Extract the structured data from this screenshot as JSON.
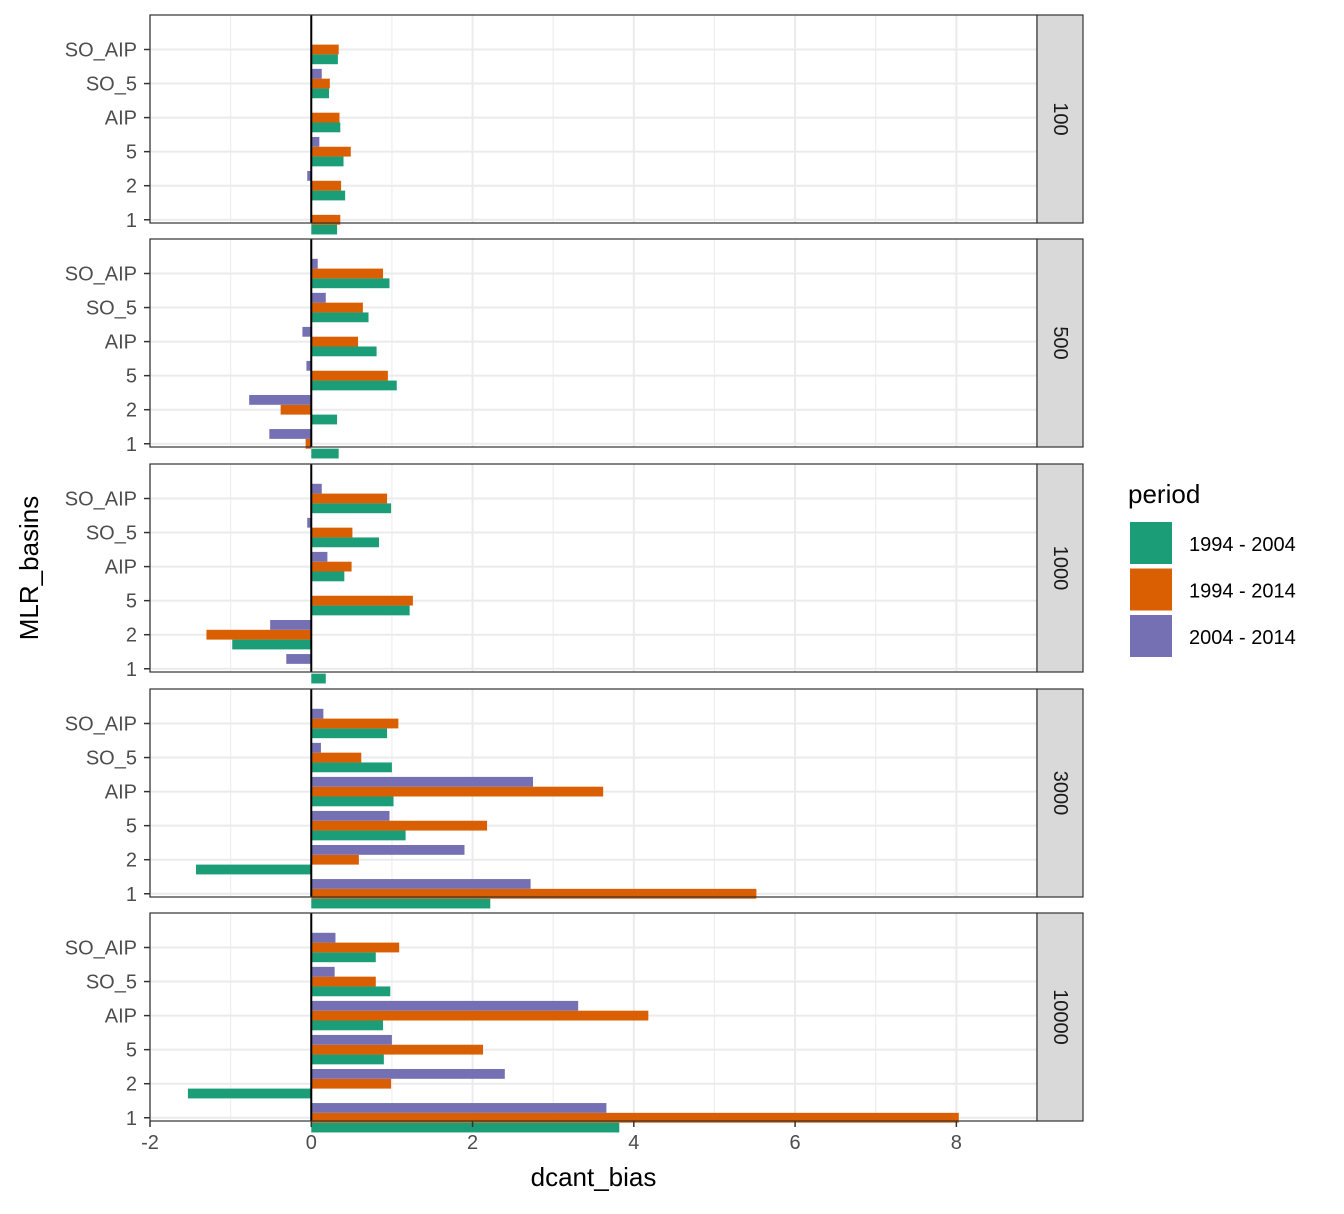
{
  "chart_data": {
    "type": "bar",
    "orientation": "horizontal",
    "facet_var": "depth",
    "facet_position": "right",
    "panels": [
      "100",
      "500",
      "1000",
      "3000",
      "10000"
    ],
    "categories": [
      "SO_AIP",
      "SO_5",
      "AIP",
      "5",
      "2",
      "1"
    ],
    "xlabel": "dcant_bias",
    "ylabel": "MLR_basins",
    "xlim": [
      -2,
      9
    ],
    "xticks": [
      -2,
      0,
      2,
      4,
      6,
      8
    ],
    "xtick_labels": [
      "-2",
      "0",
      "2",
      "4",
      "6",
      "8"
    ],
    "grid": true,
    "legend": {
      "title": "period",
      "position": "right",
      "entries": [
        "1994 - 2004",
        "1994 - 2014",
        "2004 - 2014"
      ]
    },
    "series": [
      {
        "name": "1994 - 2004",
        "color": "#1b9e77",
        "values": {
          "100": [
            0.33,
            0.22,
            0.36,
            0.4,
            0.42,
            0.32
          ],
          "500": [
            0.97,
            0.71,
            0.81,
            1.06,
            0.32,
            0.34
          ],
          "1000": [
            0.99,
            0.84,
            0.41,
            1.22,
            -0.98,
            0.18
          ],
          "3000": [
            0.94,
            1.0,
            1.02,
            1.17,
            -1.43,
            2.22
          ],
          "10000": [
            0.8,
            0.98,
            0.89,
            0.9,
            -1.53,
            3.82
          ]
        }
      },
      {
        "name": "1994 - 2014",
        "color": "#d95f02",
        "values": {
          "100": [
            0.34,
            0.23,
            0.35,
            0.49,
            0.37,
            0.36
          ],
          "500": [
            0.89,
            0.64,
            0.58,
            0.95,
            -0.38,
            -0.07
          ],
          "1000": [
            0.94,
            0.51,
            0.5,
            1.26,
            -1.3,
            0.0
          ],
          "3000": [
            1.08,
            0.62,
            3.62,
            2.18,
            0.59,
            5.52
          ],
          "10000": [
            1.09,
            0.8,
            4.18,
            2.13,
            0.99,
            8.03
          ]
        }
      },
      {
        "name": "2004 - 2014",
        "color": "#7570b3",
        "values": {
          "100": [
            0.0,
            0.13,
            0.0,
            0.1,
            -0.05,
            0.0
          ],
          "500": [
            0.08,
            0.18,
            -0.11,
            -0.06,
            -0.77,
            -0.52
          ],
          "1000": [
            0.13,
            -0.05,
            0.2,
            0.0,
            -0.51,
            -0.31
          ],
          "3000": [
            0.15,
            0.12,
            2.75,
            0.97,
            1.9,
            2.72
          ],
          "10000": [
            0.3,
            0.29,
            3.31,
            1.0,
            2.4,
            3.66
          ]
        }
      }
    ]
  }
}
